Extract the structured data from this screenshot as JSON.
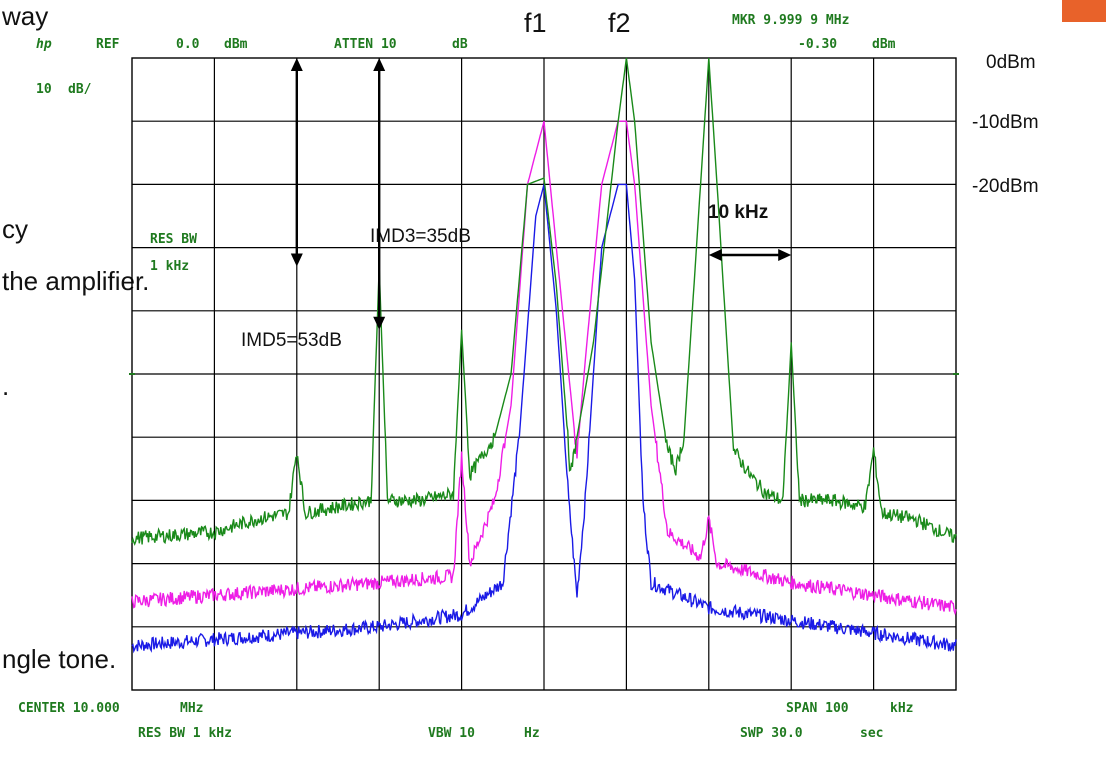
{
  "slide_fragments": [
    "way",
    "cy",
    "the amplifier.",
    ".",
    "ngle tone."
  ],
  "instrument": {
    "logo": "hp",
    "ref_label": "REF",
    "ref_value": "0.0",
    "ref_unit": "dBm",
    "atten_label": "ATTEN 10",
    "atten_unit": "dB",
    "mkr_label": "MKR 9.999 9 MHz",
    "mkr_value": "-0.30",
    "mkr_unit": "dBm",
    "scale": "10",
    "scale_unit": "dB/",
    "res_bw_title": "RES BW",
    "res_bw_value": "1 kHz",
    "center": "CENTER 10.000",
    "center_unit": "MHz",
    "res_bw_bottom": "RES BW 1 kHz",
    "vbw": "VBW 10",
    "vbw_unit": "Hz",
    "span": "SPAN 100",
    "span_unit": "kHz",
    "swp": "SWP 30.0",
    "swp_unit": "sec"
  },
  "annotations": {
    "f1": "f1",
    "f2": "f2",
    "level_0": "0dBm",
    "level_10": "-10dBm",
    "level_20": "-20dBm",
    "spacing": "10 kHz",
    "imd3": "IMD3=35dB",
    "imd5": "IMD5=53dB"
  },
  "colors": {
    "grid": "#000000",
    "text_instrument": "#1f7a1f",
    "trace_green": "#1a8a1a",
    "trace_magenta": "#ee1ee6",
    "trace_blue": "#1a1ae6",
    "accent": "#e8622a"
  },
  "chart_data": {
    "type": "line",
    "title": "",
    "xlabel": "",
    "ylabel": "",
    "x_unit": "kHz offset from center",
    "xlim": [
      -50,
      50
    ],
    "ylim": [
      -100,
      0
    ],
    "grid": true,
    "legend": "none",
    "series": [
      {
        "color": "green",
        "points": [
          [
            -50,
            -76
          ],
          [
            -40,
            -75
          ],
          [
            -35,
            -73
          ],
          [
            -31,
            -72
          ],
          [
            -30,
            -62
          ],
          [
            -29,
            -72
          ],
          [
            -25,
            -71
          ],
          [
            -21,
            -70
          ],
          [
            -20,
            -33
          ],
          [
            -19,
            -70
          ],
          [
            -15,
            -70
          ],
          [
            -11,
            -69
          ],
          [
            -10,
            -43
          ],
          [
            -9,
            -66
          ],
          [
            -6,
            -60
          ],
          [
            -4,
            -50
          ],
          [
            -2,
            -20
          ],
          [
            0,
            -19
          ],
          [
            1.5,
            -36
          ],
          [
            3,
            -62
          ],
          [
            3.2,
            -66
          ],
          [
            4,
            -60
          ],
          [
            6,
            -45
          ],
          [
            9,
            -10
          ],
          [
            10,
            0
          ],
          [
            11,
            -10
          ],
          [
            13,
            -45
          ],
          [
            15,
            -62
          ],
          [
            16,
            -65
          ],
          [
            17,
            -60
          ],
          [
            19,
            -20
          ],
          [
            20,
            0
          ],
          [
            21,
            -20
          ],
          [
            23,
            -62
          ],
          [
            25,
            -66
          ],
          [
            27,
            -69
          ],
          [
            29,
            -70
          ],
          [
            30,
            -45
          ],
          [
            31,
            -70
          ],
          [
            35,
            -70
          ],
          [
            39,
            -71
          ],
          [
            40,
            -62
          ],
          [
            41,
            -72
          ],
          [
            45,
            -73
          ],
          [
            50,
            -76
          ]
        ]
      },
      {
        "color": "magenta",
        "points": [
          [
            -50,
            -86
          ],
          [
            -40,
            -85
          ],
          [
            -30,
            -84
          ],
          [
            -20,
            -83
          ],
          [
            -11,
            -82
          ],
          [
            -10,
            -63
          ],
          [
            -9,
            -80
          ],
          [
            -6,
            -70
          ],
          [
            -4,
            -55
          ],
          [
            -2,
            -20
          ],
          [
            0,
            -10
          ],
          [
            1.5,
            -30
          ],
          [
            3,
            -50
          ],
          [
            4,
            -63
          ],
          [
            5,
            -48
          ],
          [
            7,
            -20
          ],
          [
            9,
            -10
          ],
          [
            10,
            -10
          ],
          [
            11,
            -20
          ],
          [
            13,
            -55
          ],
          [
            15,
            -75
          ],
          [
            19,
            -79
          ],
          [
            20,
            -73
          ],
          [
            21,
            -80
          ],
          [
            30,
            -83
          ],
          [
            40,
            -85
          ],
          [
            50,
            -87
          ]
        ]
      },
      {
        "color": "blue",
        "points": [
          [
            -50,
            -93
          ],
          [
            -40,
            -92
          ],
          [
            -30,
            -91
          ],
          [
            -20,
            -90
          ],
          [
            -10,
            -88
          ],
          [
            -5,
            -83
          ],
          [
            -3,
            -60
          ],
          [
            -1,
            -25
          ],
          [
            0,
            -20
          ],
          [
            1.5,
            -40
          ],
          [
            3,
            -70
          ],
          [
            4,
            -85
          ],
          [
            5,
            -70
          ],
          [
            7,
            -30
          ],
          [
            9,
            -20
          ],
          [
            10,
            -20
          ],
          [
            11,
            -35
          ],
          [
            12,
            -70
          ],
          [
            13,
            -83
          ],
          [
            20,
            -87
          ],
          [
            30,
            -89
          ],
          [
            40,
            -91
          ],
          [
            50,
            -93
          ]
        ]
      }
    ]
  }
}
